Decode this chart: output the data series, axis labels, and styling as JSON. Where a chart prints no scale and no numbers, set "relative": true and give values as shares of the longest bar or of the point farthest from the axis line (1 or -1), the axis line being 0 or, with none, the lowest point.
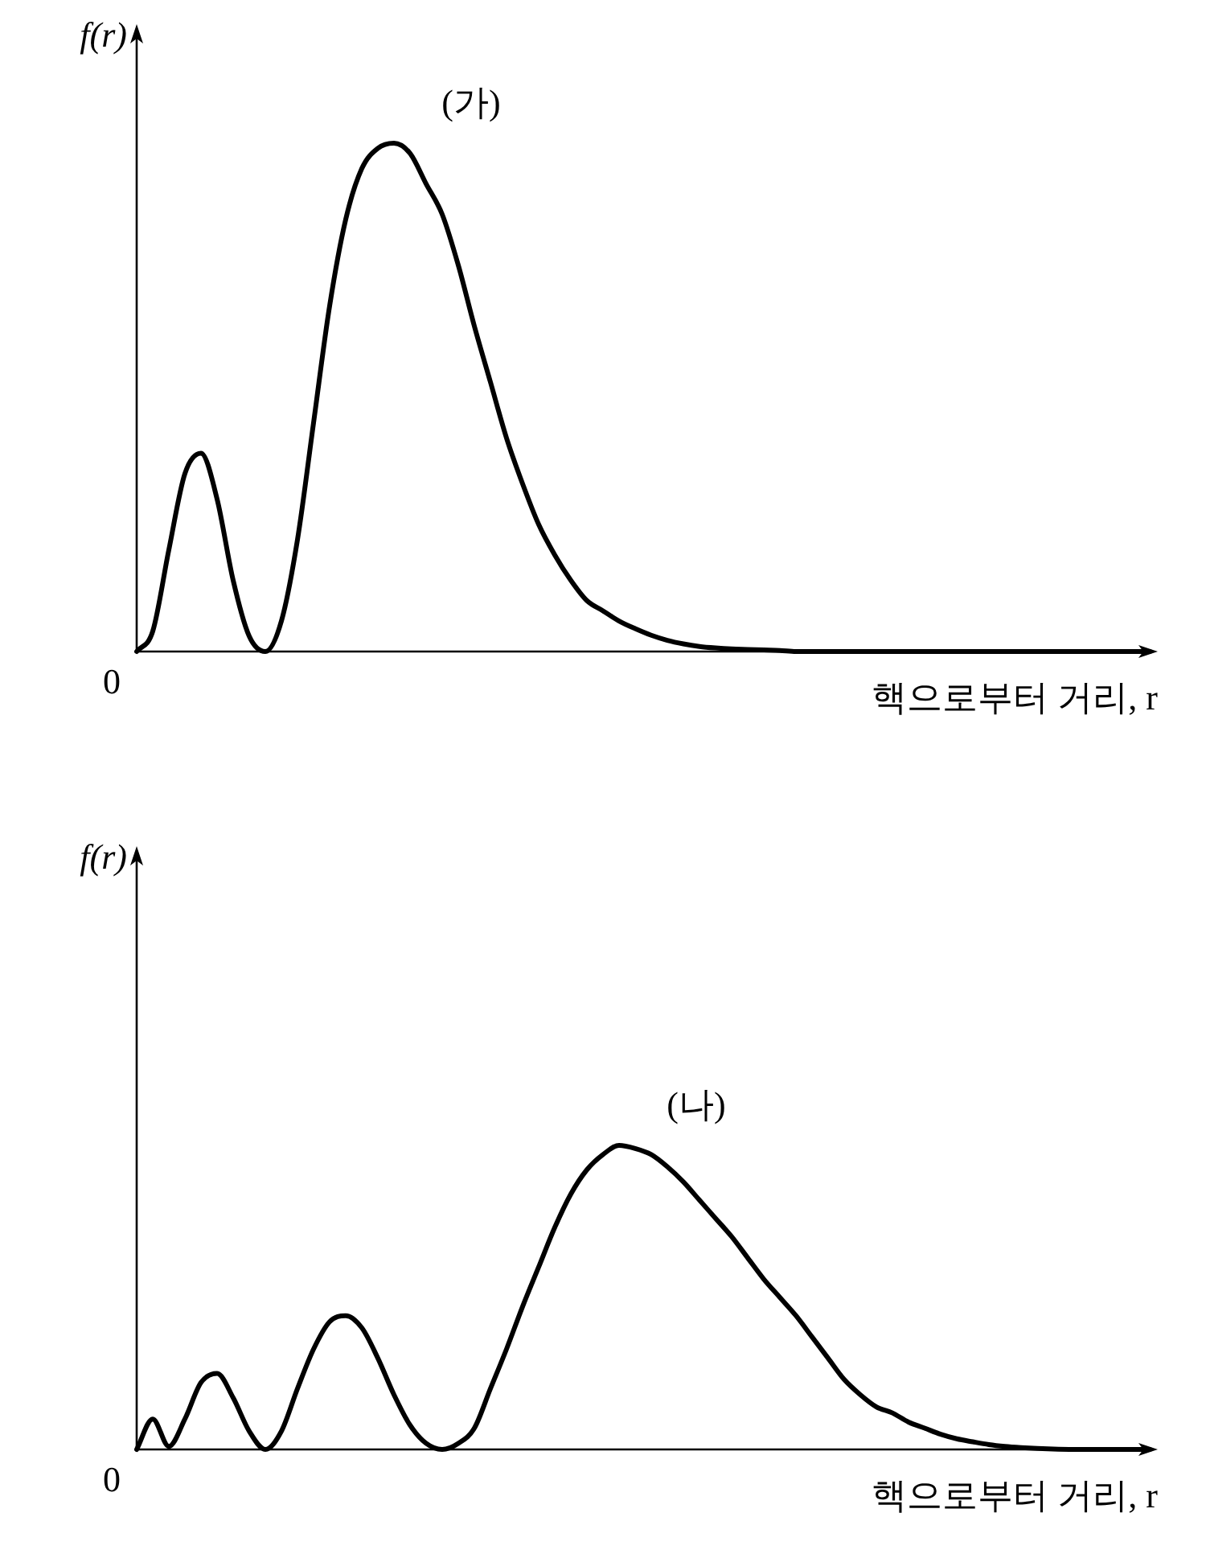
{
  "chart_data": [
    {
      "type": "line",
      "relative": true,
      "ylabel": "f(r)",
      "xlabel": "핵으로부터 거리, r",
      "categories": [
        null,
        null,
        null,
        null,
        null,
        null,
        null,
        null,
        null,
        null,
        null,
        null,
        null,
        null,
        null,
        null,
        null,
        null,
        null,
        null,
        null,
        null,
        null,
        null,
        null,
        null,
        null,
        null,
        null,
        null,
        null,
        null,
        null,
        null,
        null,
        null,
        null,
        null,
        null,
        null,
        null,
        null,
        null,
        null,
        null,
        null,
        null,
        null,
        null,
        null,
        null,
        null,
        null,
        null,
        null,
        null,
        null,
        null,
        null,
        null,
        null,
        null,
        null,
        null
      ],
      "series": [
        {
          "color": "#000000",
          "values": [
            0,
            0.04,
            0.2,
            0.35,
            0.39,
            0.3,
            0.14,
            0.03,
            0,
            0.06,
            0.22,
            0.45,
            0.68,
            0.85,
            0.95,
            0.99,
            1,
            0.98,
            0.92,
            0.86,
            0.76,
            0.64,
            0.53,
            0.42,
            0.33,
            0.25,
            0.19,
            0.14,
            0.1,
            0.08,
            0.06,
            0.045,
            0.032,
            0.022,
            0.015,
            0.01,
            0.007,
            0.005,
            0.004,
            0.003,
            0.002,
            0,
            0,
            0,
            0,
            0,
            0,
            0,
            0,
            0,
            0,
            0,
            0,
            0,
            0,
            0,
            0,
            0,
            0,
            0,
            0,
            0,
            0,
            0
          ]
        }
      ],
      "annotations": [
        "0",
        "(가)"
      ]
    },
    {
      "type": "line",
      "relative": true,
      "ylabel": "f(r)",
      "xlabel": "핵으로부터 거리, r",
      "categories": [
        null,
        null,
        null,
        null,
        null,
        null,
        null,
        null,
        null,
        null,
        null,
        null,
        null,
        null,
        null,
        null,
        null,
        null,
        null,
        null,
        null,
        null,
        null,
        null,
        null,
        null,
        null,
        null,
        null,
        null,
        null,
        null,
        null,
        null,
        null,
        null,
        null,
        null,
        null,
        null,
        null,
        null,
        null,
        null,
        null,
        null,
        null,
        null,
        null,
        null,
        null,
        null,
        null,
        null,
        null,
        null,
        null,
        null,
        null,
        null,
        null,
        null,
        null,
        null
      ],
      "series": [
        {
          "color": "#000000",
          "values": [
            0,
            0.1,
            0.01,
            0.1,
            0.22,
            0.25,
            0.17,
            0.06,
            0,
            0.06,
            0.2,
            0.33,
            0.42,
            0.44,
            0.4,
            0.3,
            0.18,
            0.08,
            0.02,
            0,
            0.02,
            0.07,
            0.2,
            0.33,
            0.47,
            0.6,
            0.73,
            0.84,
            0.92,
            0.97,
            1,
            0.99,
            0.97,
            0.93,
            0.88,
            0.82,
            0.76,
            0.7,
            0.63,
            0.56,
            0.5,
            0.44,
            0.37,
            0.3,
            0.23,
            0.18,
            0.14,
            0.12,
            0.09,
            0.07,
            0.05,
            0.035,
            0.025,
            0.016,
            0.01,
            0.006,
            0.003,
            0.001,
            0,
            0,
            0,
            0,
            0,
            0
          ]
        }
      ],
      "annotations": [
        "0",
        "(나)"
      ]
    }
  ]
}
